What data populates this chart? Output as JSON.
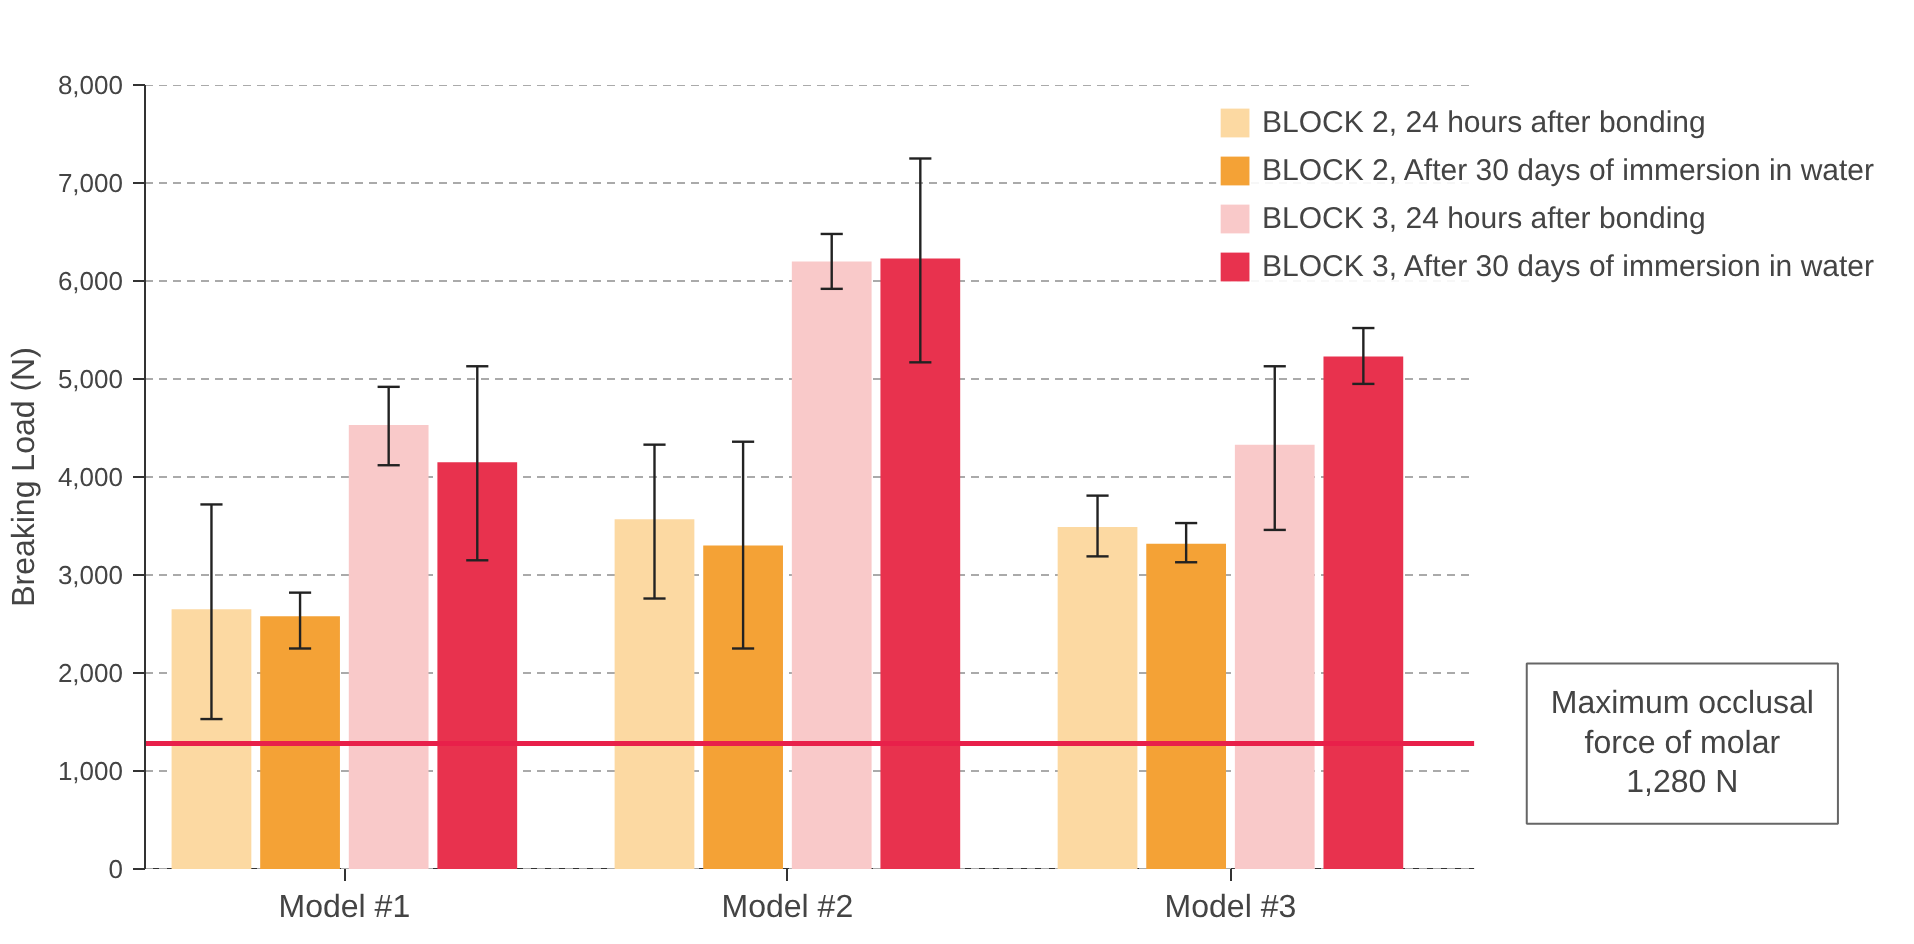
{
  "chart_data": {
    "type": "bar",
    "ylabel": "Breaking Load (N)",
    "categories": [
      "Model #1",
      "Model #2",
      "Model #3"
    ],
    "series": [
      {
        "name": "BLOCK 2, 24 hours after bonding",
        "color": "#fcd9a2",
        "values": [
          2650,
          3570,
          3490
        ],
        "errors": [
          [
            1530,
            3720
          ],
          [
            2760,
            4330
          ],
          [
            3190,
            3810
          ]
        ]
      },
      {
        "name": "BLOCK 2, After 30 days of immersion in water",
        "color": "#f4a236",
        "values": [
          2580,
          3300,
          3320
        ],
        "errors": [
          [
            2250,
            2820
          ],
          [
            2250,
            4360
          ],
          [
            3130,
            3530
          ]
        ]
      },
      {
        "name": "BLOCK 3, 24 hours after bonding",
        "color": "#f9c9c9",
        "values": [
          4530,
          6200,
          4330
        ],
        "errors": [
          [
            4120,
            4920
          ],
          [
            5920,
            6480
          ],
          [
            3460,
            5130
          ]
        ]
      },
      {
        "name": "BLOCK 3, After 30 days of immersion in water",
        "color": "#e8324e",
        "values": [
          4150,
          6230,
          5230
        ],
        "errors": [
          [
            3150,
            5130
          ],
          [
            5170,
            7250
          ],
          [
            4950,
            5520
          ]
        ]
      }
    ],
    "ylim": [
      0,
      8000
    ],
    "yticks": [
      0,
      {
        "value": 1000,
        "label": "1,000"
      },
      {
        "value": 2000,
        "label": "2,000"
      },
      {
        "value": 3000,
        "label": "3,000"
      },
      {
        "value": 4000,
        "label": "4,000"
      },
      {
        "value": 5000,
        "label": "5,000"
      },
      {
        "value": 6000,
        "label": "6,000"
      },
      {
        "value": 7000,
        "label": "7,000"
      },
      {
        "value": 8000,
        "label": "8,000"
      }
    ],
    "grid": "y",
    "legend": "top right",
    "ref_lines": [
      {
        "axis": "y",
        "value": 1280,
        "label": "Maximum occlusal\nforce of molar\n1,280 N",
        "color": "#e8204a"
      }
    ]
  }
}
